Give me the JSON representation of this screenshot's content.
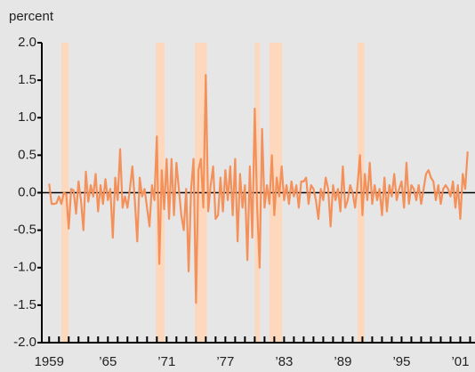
{
  "chart_data": {
    "type": "line",
    "y_label": "percent",
    "xlim": [
      1958.25,
      2002.5
    ],
    "ylim": [
      -2.0,
      2.0
    ],
    "yticks": [
      {
        "value": 2.0,
        "label": "2.0"
      },
      1.5,
      {
        "value": 1.0,
        "label": "1.0"
      },
      0.5,
      {
        "value": 0.0,
        "label": "0.0"
      },
      -0.5,
      {
        "value": -1.0,
        "label": "-1.0"
      },
      -1.5,
      {
        "value": -2.0,
        "label": "-2.0"
      }
    ],
    "xticks": [
      1959,
      {
        "value": 1965,
        "label": "’65"
      },
      {
        "value": 1971,
        "label": "’71"
      },
      {
        "value": 1977,
        "label": "’77"
      },
      {
        "value": 1983,
        "label": "’83"
      },
      {
        "value": 1989,
        "label": "’89"
      },
      {
        "value": 1995,
        "label": "’95"
      },
      {
        "value": 2001,
        "label": "’01"
      }
    ],
    "xminorticks": [
      1959,
      1960,
      1961,
      1962,
      1963,
      1964,
      1965,
      1966,
      1967,
      1968,
      1969,
      1970,
      1971,
      1972,
      1973,
      1974,
      1975,
      1976,
      1977,
      1978,
      1979,
      1980,
      1981,
      1982,
      1983,
      1984,
      1985,
      1986,
      1987,
      1988,
      1989,
      1990,
      1991,
      1992,
      1993,
      1994,
      1995,
      1996,
      1997,
      1998,
      1999,
      2000,
      2001,
      2002
    ],
    "recessions": [
      [
        1960.25,
        1961.0
      ],
      [
        1969.9,
        1970.8
      ],
      [
        1973.9,
        1975.1
      ],
      [
        1980.0,
        1980.5
      ],
      [
        1981.5,
        1982.8
      ],
      [
        1990.5,
        1991.2
      ]
    ],
    "recession_color": "#fdd8bd",
    "series": [
      {
        "color": "#f4915a",
        "x": [
          1959,
          1959.25,
          1959.5,
          1959.75,
          1960,
          1960.25,
          1960.5,
          1960.75,
          1961,
          1961.25,
          1961.5,
          1961.75,
          1962,
          1962.25,
          1962.5,
          1962.75,
          1963,
          1963.25,
          1963.5,
          1963.75,
          1964,
          1964.25,
          1964.5,
          1964.75,
          1965,
          1965.25,
          1965.5,
          1965.75,
          1966,
          1966.25,
          1966.5,
          1966.75,
          1967,
          1967.25,
          1967.5,
          1967.75,
          1968,
          1968.25,
          1968.5,
          1968.75,
          1969,
          1969.25,
          1969.5,
          1969.75,
          1970,
          1970.25,
          1970.5,
          1970.75,
          1971,
          1971.25,
          1971.5,
          1971.75,
          1972,
          1972.25,
          1972.5,
          1972.75,
          1973,
          1973.25,
          1973.5,
          1973.75,
          1974,
          1974.25,
          1974.5,
          1974.75,
          1975,
          1975.25,
          1975.5,
          1975.75,
          1976,
          1976.25,
          1976.5,
          1976.75,
          1977,
          1977.25,
          1977.5,
          1977.75,
          1978,
          1978.25,
          1978.5,
          1978.75,
          1979,
          1979.25,
          1979.5,
          1979.75,
          1980,
          1980.25,
          1980.5,
          1980.75,
          1981,
          1981.25,
          1981.5,
          1981.75,
          1982,
          1982.25,
          1982.5,
          1982.75,
          1983,
          1983.25,
          1983.5,
          1983.75,
          1984,
          1984.25,
          1984.5,
          1984.75,
          1985,
          1985.25,
          1985.5,
          1985.75,
          1986,
          1986.25,
          1986.5,
          1986.75,
          1987,
          1987.25,
          1987.5,
          1987.75,
          1988,
          1988.25,
          1988.5,
          1988.75,
          1989,
          1989.25,
          1989.5,
          1989.75,
          1990,
          1990.25,
          1990.5,
          1990.75,
          1991,
          1991.25,
          1991.5,
          1991.75,
          1992,
          1992.25,
          1992.5,
          1992.75,
          1993,
          1993.25,
          1993.5,
          1993.75,
          1994,
          1994.25,
          1994.5,
          1994.75,
          1995,
          1995.25,
          1995.5,
          1995.75,
          1996,
          1996.25,
          1996.5,
          1996.75,
          1997,
          1997.25,
          1997.5,
          1997.75,
          1998,
          1998.25,
          1998.5,
          1998.75,
          1999,
          1999.25,
          1999.5,
          1999.75,
          2000,
          2000.25,
          2000.5,
          2000.75,
          2001,
          2001.25,
          2001.5,
          2001.75
        ],
        "values": [
          0.12,
          -0.15,
          -0.15,
          -0.14,
          -0.05,
          -0.15,
          0.0,
          -0.02,
          -0.48,
          0.05,
          0.03,
          -0.28,
          0.15,
          -0.1,
          -0.5,
          0.28,
          -0.12,
          0.1,
          -0.05,
          0.25,
          -0.25,
          0.1,
          -0.15,
          0.18,
          -0.1,
          0.05,
          -0.6,
          0.2,
          -0.1,
          0.58,
          -0.2,
          -0.05,
          -0.2,
          0.05,
          0.35,
          -0.1,
          -0.65,
          0.2,
          -0.05,
          0.05,
          -0.2,
          -0.45,
          0.1,
          -0.1,
          0.75,
          -0.95,
          0.3,
          -0.22,
          0.45,
          -0.35,
          0.45,
          -0.3,
          0.4,
          0.05,
          -0.3,
          -0.5,
          0.05,
          -1.05,
          0.05,
          0.45,
          -1.47,
          0.3,
          0.45,
          -0.2,
          1.57,
          -0.25,
          0.1,
          0.35,
          -0.35,
          -0.3,
          0.2,
          -0.25,
          0.3,
          -0.1,
          0.35,
          -0.3,
          0.45,
          -0.65,
          0.25,
          -0.2,
          0.1,
          -0.9,
          0.35,
          -0.6,
          1.12,
          -0.2,
          -1.0,
          0.85,
          -0.2,
          0.1,
          -0.15,
          0.5,
          -0.3,
          0.2,
          -0.05,
          0.35,
          -0.1,
          0.1,
          -0.15,
          0.15,
          -0.05,
          0.1,
          -0.2,
          0.15,
          0.15,
          0.2,
          -0.15,
          0.1,
          0.05,
          -0.1,
          -0.35,
          0.05,
          -0.1,
          0.2,
          0.05,
          -0.45,
          0.1,
          -0.1,
          0.05,
          -0.25,
          0.35,
          -0.2,
          -0.1,
          0.1,
          0.0,
          -0.2,
          0.1,
          0.5,
          -0.3,
          0.25,
          -0.1,
          0.4,
          -0.15,
          0.1,
          -0.1,
          0.05,
          -0.3,
          0.2,
          -0.25,
          0.1,
          -0.05,
          0.25,
          -0.1,
          0.05,
          0.15,
          -0.2,
          0.4,
          -0.15,
          0.1,
          0.05,
          -0.1,
          0.1,
          -0.15,
          0.05,
          0.25,
          0.3,
          0.2,
          0.15,
          -0.1,
          0.1,
          -0.15,
          0.05,
          0.1,
          0.05,
          -0.05,
          0.15,
          -0.2,
          0.1,
          -0.35,
          0.25,
          0.05,
          0.55
        ]
      }
    ]
  }
}
